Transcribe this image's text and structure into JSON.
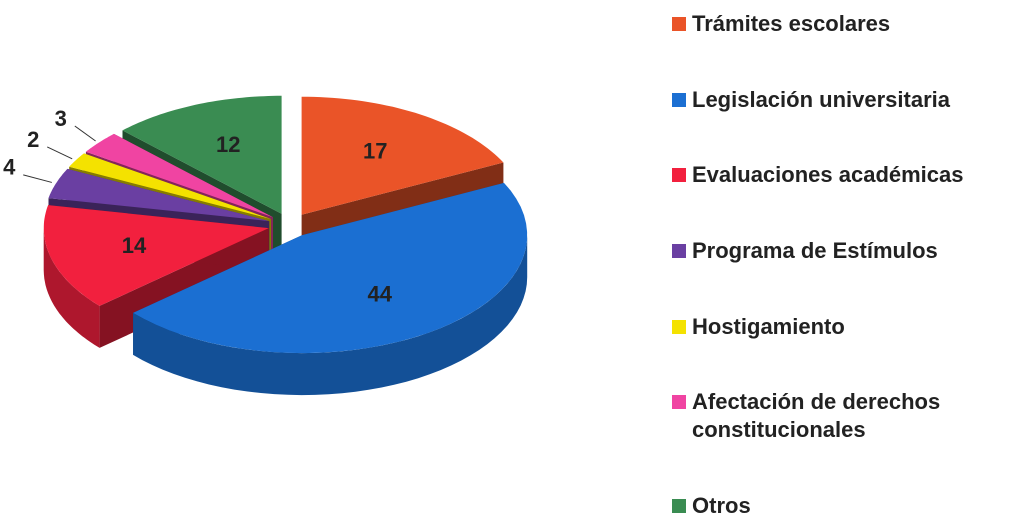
{
  "chart_data": {
    "type": "pie",
    "categories": [
      "Trámites escolares",
      "Legislación universitaria",
      "Evaluaciones académicas",
      "Programa de Estímulos",
      "Hostigamiento",
      "Afectación de derechos constitucionales",
      "Otros"
    ],
    "values": [
      17,
      44,
      14,
      4,
      2,
      3,
      12
    ],
    "colors": [
      "#ea5428",
      "#1b6fd2",
      "#f2203e",
      "#6a3fa2",
      "#f4e200",
      "#f044a2",
      "#3a8c52"
    ],
    "three_d": true,
    "exploded": true,
    "legend": "right"
  }
}
